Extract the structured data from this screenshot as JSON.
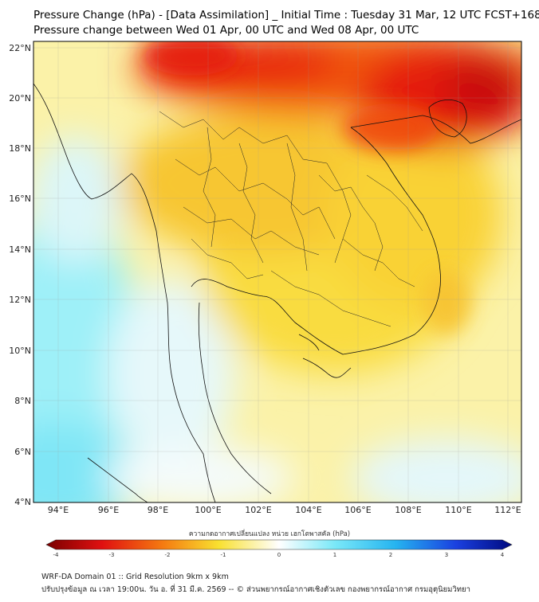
{
  "title_line1": "Pressure Change (hPa) - [Data Assimilation] _ Initial Time : Tuesday 31 Mar, 12 UTC FCST+168",
  "title_line2": "Pressure change between Wed 01 Apr, 00 UTC and Wed 08 Apr, 00 UTC",
  "map": {
    "lon_range": [
      93,
      112.5
    ],
    "lat_range": [
      4,
      22.2
    ],
    "lon_ticks": [
      "94°E",
      "96°E",
      "98°E",
      "100°E",
      "102°E",
      "104°E",
      "106°E",
      "108°E",
      "110°E",
      "112°E"
    ],
    "lat_ticks": [
      "22°N",
      "20°N",
      "18°N",
      "16°N",
      "14°N",
      "12°N",
      "10°N",
      "8°N",
      "6°N",
      "4°N"
    ],
    "gridlines": true
  },
  "colorbar": {
    "title": "ความกดอากาศเปลี่ยนแปลง หน่วย เฮกโตพาสคัล (hPa)",
    "range": [
      -4,
      4
    ],
    "tick_labels": [
      "-4",
      "-3",
      "-2",
      "-1",
      "0",
      "1",
      "2",
      "3",
      "4"
    ],
    "colors": {
      "neg_dark": "#7a0000",
      "neg_red": "#e01010",
      "neg_orange": "#f58a10",
      "neg_yellow": "#f9e030",
      "zero": "#ffffff",
      "pos_cyan": "#3fd8f0",
      "pos_blue": "#1a5ce6",
      "pos_dark": "#000a80"
    }
  },
  "footer_line1": "WRF-DA Domain 01 :: Grid Resolution 9km x 9km",
  "footer_line2": "ปรับปรุงข้อมูล ณ เวลา 19:00น. วัน อ. ที่ 31 มี.ค. 2569 -- © ส่วนพยากรณ์อากาศเชิงตัวเลข กองพยากรณ์อากาศ กรมอุตุนิยมวิทยา"
}
